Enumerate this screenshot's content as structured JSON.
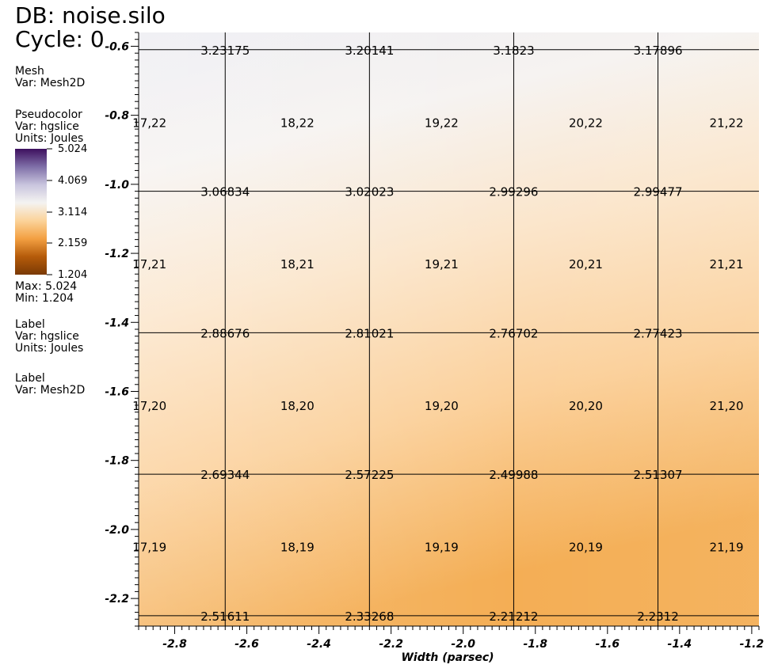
{
  "header": {
    "db": "DB: noise.silo",
    "cycle": "Cycle: 0"
  },
  "legend": {
    "mesh": {
      "title": "Mesh",
      "var": "Var: Mesh2D"
    },
    "pseudocolor": {
      "title": "Pseudocolor",
      "var": "Var: hgslice",
      "units": "Units: Joules",
      "ticks": [
        "5.024",
        "4.069",
        "3.114",
        "2.159",
        "1.204"
      ],
      "max": "Max:  5.024",
      "min": "Min:  1.204",
      "colors": [
        "#3d0f5e",
        "#7f6fa8",
        "#c9c5de",
        "#f4f3f1",
        "#fbd39a",
        "#f3a042",
        "#b55b0a",
        "#7a3a05"
      ]
    },
    "label1": {
      "title": "Label",
      "var": "Var: hgslice",
      "units": "Units: Joules"
    },
    "label2": {
      "title": "Label",
      "var": "Var: Mesh2D"
    }
  },
  "chart_data": {
    "type": "heatmap",
    "xlabel": "Width (parsec)",
    "ylabel": "",
    "xlim": [
      -2.9,
      -1.18
    ],
    "ylim": [
      -2.28,
      -0.56
    ],
    "x_ticks": [
      -2.8,
      -2.6,
      -2.4,
      -2.2,
      -2.0,
      -1.8,
      -1.6,
      -1.4,
      -1.2
    ],
    "x_tick_labels": [
      "-2.8",
      "-2.6",
      "-2.4",
      "-2.2",
      "-2.0",
      "-1.8",
      "-1.6",
      "-1.4",
      "-1.2"
    ],
    "y_ticks": [
      -0.6,
      -0.8,
      -1.0,
      -1.2,
      -1.4,
      -1.6,
      -1.8,
      -2.0,
      -2.2
    ],
    "y_tick_labels": [
      "-0.6",
      "-0.8",
      "-1.0",
      "-1.2",
      "-1.4",
      "-1.6",
      "-1.8",
      "-2.0",
      "-2.2"
    ],
    "mesh_x": [
      -2.66,
      -2.26,
      -1.86,
      -1.46
    ],
    "mesh_y": [
      -0.61,
      -1.02,
      -1.43,
      -1.84,
      -2.25
    ],
    "node_values": [
      [
        "3.23175",
        "3.20141",
        "3.1823",
        "3.17896"
      ],
      [
        "3.06834",
        "3.02023",
        "2.99296",
        "2.99477"
      ],
      [
        "2.88676",
        "2.81021",
        "2.76702",
        "2.77423"
      ],
      [
        "2.69344",
        "2.57225",
        "2.49988",
        "2.51307"
      ],
      [
        "2.51611",
        "2.33268",
        "2.21212",
        "2.2312"
      ]
    ],
    "cell_x": [
      -2.87,
      -2.46,
      -2.06,
      -1.66,
      -1.27
    ],
    "cell_y": [
      -0.82,
      -1.23,
      -1.64,
      -2.05
    ],
    "cell_labels": [
      [
        "17,22",
        "18,22",
        "19,22",
        "20,22",
        "21,22"
      ],
      [
        "17,21",
        "18,21",
        "19,21",
        "20,21",
        "21,21"
      ],
      [
        "17,20",
        "18,20",
        "19,20",
        "20,20",
        "21,20"
      ],
      [
        "17,19",
        "18,19",
        "19,19",
        "20,19",
        "21,19"
      ]
    ]
  }
}
